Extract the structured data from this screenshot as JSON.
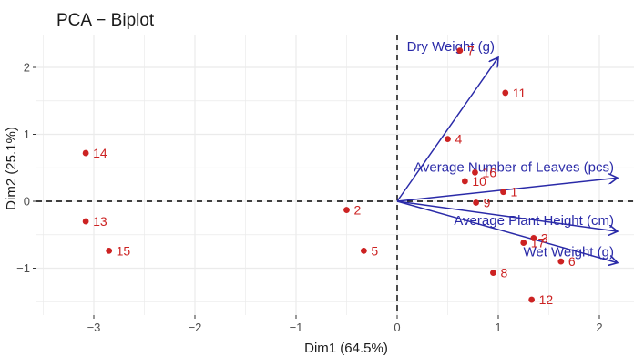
{
  "chart_data": {
    "type": "scatter",
    "title": "PCA − Biplot",
    "xlabel": "Dim1 (64.5%)",
    "ylabel": "Dim2 (25.1%)",
    "xlim": [
      -3.35,
      2.3
    ],
    "ylim": [
      -1.6,
      2.4
    ],
    "xticks": [
      -3,
      -2,
      -1,
      0,
      1,
      2
    ],
    "yticks": [
      -1,
      0,
      1,
      2
    ],
    "xtick_labels": [
      "−3",
      "−2",
      "−1",
      "0",
      "1",
      "2"
    ],
    "ytick_labels": [
      "−1",
      "0",
      "1",
      "2"
    ],
    "grid": true,
    "reference_lines": {
      "x": 0,
      "y": 0,
      "style": "dashed"
    },
    "colors": {
      "points": "#cc2222",
      "variables": "#2a2aa8",
      "grid": "#ebebeb"
    },
    "points": [
      {
        "label": "1",
        "x": 1.05,
        "y": 0.14
      },
      {
        "label": "2",
        "x": -0.5,
        "y": -0.13
      },
      {
        "label": "3",
        "x": 1.35,
        "y": -0.55
      },
      {
        "label": "4",
        "x": 0.5,
        "y": 0.93
      },
      {
        "label": "5",
        "x": -0.33,
        "y": -0.74
      },
      {
        "label": "6",
        "x": 1.62,
        "y": -0.9
      },
      {
        "label": "7",
        "x": 0.62,
        "y": 2.25
      },
      {
        "label": "8",
        "x": 0.95,
        "y": -1.07
      },
      {
        "label": "9",
        "x": 0.78,
        "y": -0.02
      },
      {
        "label": "10",
        "x": 0.67,
        "y": 0.3
      },
      {
        "label": "11",
        "x": 1.07,
        "y": 1.62
      },
      {
        "label": "12",
        "x": 1.33,
        "y": -1.47
      },
      {
        "label": "13",
        "x": -3.08,
        "y": -0.3
      },
      {
        "label": "14",
        "x": -3.08,
        "y": 0.72
      },
      {
        "label": "15",
        "x": -2.85,
        "y": -0.74
      },
      {
        "label": "16",
        "x": 0.77,
        "y": 0.43
      },
      {
        "label": "17",
        "x": 1.25,
        "y": -0.62
      }
    ],
    "variables": [
      {
        "label": "Dry Weight (g)",
        "x": 1.0,
        "y": 2.15
      },
      {
        "label": "Average Number of Leaves (pcs)",
        "x": 2.18,
        "y": 0.35
      },
      {
        "label": "Average Plant Height (cm)",
        "x": 2.18,
        "y": -0.45
      },
      {
        "label": "Wet Weight (g)",
        "x": 2.18,
        "y": -0.92
      }
    ]
  }
}
